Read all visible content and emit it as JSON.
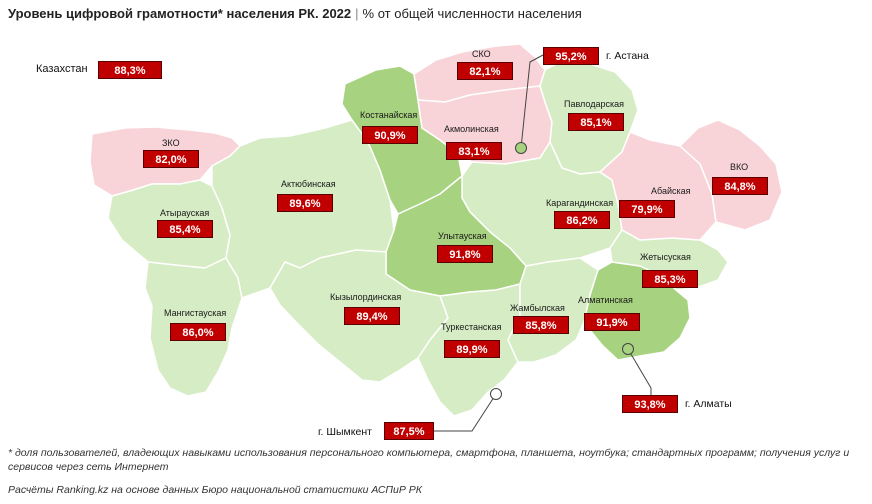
{
  "header": {
    "title": "Уровень цифровой грамотности* населения РК. 2022",
    "subtitle": "% от общей численности населения"
  },
  "national": {
    "name": "Казахстан",
    "value": "88,3%"
  },
  "colors": {
    "low": "#f8d4d8",
    "mid": "#d6ecc4",
    "high": "#a7d27f",
    "badge": "#c00000",
    "border": "#ffffff"
  },
  "regions": {
    "zko": {
      "name": "ЗКО",
      "value": "82,0%"
    },
    "atyrau": {
      "name": "Атырауская",
      "value": "85,4%"
    },
    "mangistau": {
      "name": "Мангистауская",
      "value": "86,0%"
    },
    "aktobe": {
      "name": "Актюбинская",
      "value": "89,6%"
    },
    "kostanay": {
      "name": "Костанайская",
      "value": "90,9%"
    },
    "sko": {
      "name": "СКО",
      "value": "82,1%"
    },
    "akmola": {
      "name": "Акмолинская",
      "value": "83,1%"
    },
    "pavlodar": {
      "name": "Павлодарская",
      "value": "85,1%"
    },
    "karaganda": {
      "name": "Карагандинская",
      "value": "86,2%"
    },
    "ulytau": {
      "name": "Улытауская",
      "value": "91,8%"
    },
    "kyzylorda": {
      "name": "Кызылординская",
      "value": "89,4%"
    },
    "turkestan": {
      "name": "Туркестанская",
      "value": "89,9%"
    },
    "zhambyl": {
      "name": "Жамбылская",
      "value": "85,8%"
    },
    "almaty_reg": {
      "name": "Алматинская",
      "value": "91,9%"
    },
    "zhetysu": {
      "name": "Жетысуская",
      "value": "85,3%"
    },
    "abay": {
      "name": "Абайская",
      "value": "79,9%"
    },
    "vko": {
      "name": "ВКО",
      "value": "84,8%"
    }
  },
  "cities": {
    "astana": {
      "name": "г. Астана",
      "value": "95,2%"
    },
    "almaty": {
      "name": "г. Алматы",
      "value": "93,8%"
    },
    "shymkent": {
      "name": "г. Шымкент",
      "value": "87,5%"
    }
  },
  "footnotes": {
    "definition": "* доля пользователей, владеющих навыками использования персонального компьютера, смартфона, планшета, ноутбука; стандартных программ; получения услуг и сервисов через сеть Интернет",
    "source": "Расчёты Ranking.kz на основе данных Бюро национальной статистики АСПиР РК"
  }
}
